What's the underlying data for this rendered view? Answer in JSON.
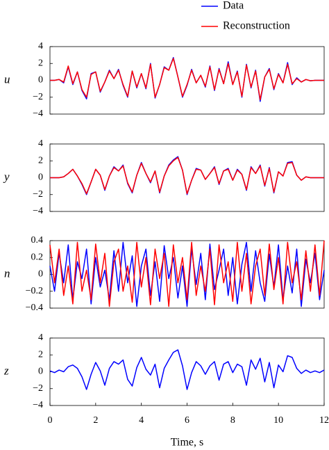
{
  "chart_data": [
    {
      "type": "line",
      "ylabel": "u",
      "legend": "above",
      "xlim": [
        0,
        12
      ],
      "ylim": [
        -4,
        4
      ],
      "yticks": [
        {
          "value": -4,
          "label": "−4"
        },
        {
          "value": -2,
          "label": "−2"
        },
        0,
        2,
        4
      ],
      "x": [
        0,
        0.2,
        0.4,
        0.6,
        0.8,
        1,
        1.2,
        1.4,
        1.6,
        1.8,
        2,
        2.2,
        2.4,
        2.6,
        2.8,
        3,
        3.2,
        3.4,
        3.6,
        3.8,
        4,
        4.2,
        4.4,
        4.6,
        4.8,
        5,
        5.2,
        5.4,
        5.6,
        5.8,
        6,
        6.2,
        6.4,
        6.6,
        6.8,
        7,
        7.2,
        7.4,
        7.6,
        7.8,
        8,
        8.2,
        8.4,
        8.6,
        8.8,
        9,
        9.2,
        9.4,
        9.6,
        9.8,
        10,
        10.2,
        10.4,
        10.6,
        10.8,
        11,
        11.2,
        11.4,
        11.6,
        11.8,
        12
      ],
      "series": [
        {
          "name": "Data",
          "color": "#0000ff",
          "values": [
            0,
            0,
            0.1,
            -0.3,
            1.6,
            -0.5,
            1.0,
            -1.2,
            -2.2,
            0.8,
            1.0,
            -1.4,
            -0.2,
            1.2,
            0.2,
            1.3,
            -0.6,
            -2.0,
            1.1,
            -0.9,
            0.8,
            -1.0,
            2.0,
            -2.1,
            -0.5,
            1.6,
            1.2,
            2.7,
            0.4,
            -2.0,
            -0.6,
            1.3,
            -0.3,
            0.6,
            -0.8,
            1.7,
            -1.2,
            1.4,
            -0.4,
            2.2,
            -0.5,
            1.1,
            -2.0,
            1.9,
            -0.9,
            1.2,
            -2.5,
            0.4,
            1.4,
            -1.1,
            0.8,
            -0.3,
            2.1,
            -0.5,
            0.3,
            -0.2,
            0.1,
            -0.05,
            0,
            0,
            0
          ]
        },
        {
          "name": "Reconstruction",
          "color": "#ff0000",
          "values": [
            0,
            0,
            0.1,
            -0.2,
            1.7,
            -0.4,
            1.0,
            -1.1,
            -2.0,
            0.7,
            1.0,
            -1.3,
            -0.2,
            1.1,
            0.2,
            1.2,
            -0.5,
            -1.9,
            1.1,
            -0.8,
            0.8,
            -0.9,
            1.9,
            -2.0,
            -0.5,
            1.5,
            1.2,
            2.6,
            0.4,
            -1.9,
            -0.5,
            1.2,
            -0.3,
            0.6,
            -0.7,
            1.6,
            -1.1,
            1.3,
            -0.4,
            2.0,
            -0.5,
            1.0,
            -1.9,
            1.8,
            -0.8,
            1.1,
            -2.3,
            0.4,
            1.3,
            -1.0,
            0.7,
            -0.3,
            1.9,
            -0.4,
            0.2,
            -0.2,
            0.1,
            -0.05,
            0,
            0,
            0
          ]
        }
      ]
    },
    {
      "type": "line",
      "ylabel": "y",
      "xlim": [
        0,
        12
      ],
      "ylim": [
        -4,
        4
      ],
      "yticks": [
        {
          "value": -4,
          "label": "−4"
        },
        {
          "value": -2,
          "label": "−2"
        },
        0,
        2,
        4
      ],
      "x": [
        0,
        0.2,
        0.4,
        0.6,
        0.8,
        1,
        1.2,
        1.4,
        1.6,
        1.8,
        2,
        2.2,
        2.4,
        2.6,
        2.8,
        3,
        3.2,
        3.4,
        3.6,
        3.8,
        4,
        4.2,
        4.4,
        4.6,
        4.8,
        5,
        5.2,
        5.4,
        5.6,
        5.8,
        6,
        6.2,
        6.4,
        6.6,
        6.8,
        7,
        7.2,
        7.4,
        7.6,
        7.8,
        8,
        8.2,
        8.4,
        8.6,
        8.8,
        9,
        9.2,
        9.4,
        9.6,
        9.8,
        10,
        10.2,
        10.4,
        10.6,
        10.8,
        11,
        11.2,
        11.4,
        11.6,
        11.8,
        12
      ],
      "series": [
        {
          "name": "Data",
          "color": "#0000ff",
          "values": [
            0,
            0,
            0,
            0.1,
            0.5,
            1.0,
            0.2,
            -0.8,
            -2.0,
            -0.5,
            1.0,
            0.3,
            -1.5,
            0.2,
            1.3,
            0.8,
            1.5,
            -0.7,
            -1.8,
            0.3,
            1.8,
            0.5,
            -0.6,
            0.8,
            -1.8,
            0.2,
            1.5,
            2.1,
            2.5,
            0.9,
            -2.0,
            -0.3,
            1.1,
            0.9,
            -0.2,
            0.5,
            1.3,
            -0.8,
            0.8,
            1.1,
            -0.3,
            1.0,
            0.4,
            -1.5,
            1.3,
            0.5,
            1.5,
            -1.0,
            1.2,
            -1.8,
            0.7,
            0.2,
            1.8,
            1.9,
            0.3,
            -0.3,
            0.1,
            0,
            0,
            0,
            0
          ]
        },
        {
          "name": "Reconstruction",
          "color": "#ff0000",
          "values": [
            0,
            0,
            0,
            0.1,
            0.5,
            1.0,
            0.2,
            -0.7,
            -1.9,
            -0.5,
            1.0,
            0.3,
            -1.4,
            0.2,
            1.2,
            0.8,
            1.4,
            -0.6,
            -1.7,
            0.3,
            1.7,
            0.5,
            -0.5,
            0.8,
            -1.7,
            0.2,
            1.4,
            2.0,
            2.4,
            0.9,
            -1.9,
            -0.3,
            1.0,
            0.9,
            -0.2,
            0.5,
            1.2,
            -0.7,
            0.8,
            1.0,
            -0.3,
            0.9,
            0.4,
            -1.4,
            1.2,
            0.5,
            1.4,
            -0.9,
            1.1,
            -1.7,
            0.7,
            0.2,
            1.7,
            1.8,
            0.3,
            -0.3,
            0.1,
            0,
            0,
            0,
            0
          ]
        }
      ]
    },
    {
      "type": "line",
      "ylabel": "n",
      "xlim": [
        0,
        12
      ],
      "ylim": [
        -0.4,
        0.4
      ],
      "yticks": [
        {
          "value": -0.4,
          "label": "−0.4"
        },
        {
          "value": -0.2,
          "label": "−0.2"
        },
        0,
        0.2,
        0.4
      ],
      "x": [
        0,
        0.2,
        0.4,
        0.6,
        0.8,
        1,
        1.2,
        1.4,
        1.6,
        1.8,
        2,
        2.2,
        2.4,
        2.6,
        2.8,
        3,
        3.2,
        3.4,
        3.6,
        3.8,
        4,
        4.2,
        4.4,
        4.6,
        4.8,
        5,
        5.2,
        5.4,
        5.6,
        5.8,
        6,
        6.2,
        6.4,
        6.6,
        6.8,
        7,
        7.2,
        7.4,
        7.6,
        7.8,
        8,
        8.2,
        8.4,
        8.6,
        8.8,
        9,
        9.2,
        9.4,
        9.6,
        9.8,
        10,
        10.2,
        10.4,
        10.6,
        10.8,
        11,
        11.2,
        11.4,
        11.6,
        11.8,
        12
      ],
      "series": [
        {
          "name": "Data",
          "color": "#0000ff",
          "values": [
            0.1,
            -0.2,
            0.25,
            -0.1,
            0.35,
            -0.3,
            0.15,
            -0.05,
            0.3,
            -0.35,
            0.2,
            -0.15,
            0.05,
            -0.3,
            0.28,
            -0.2,
            0.38,
            -0.1,
            0.22,
            -0.38,
            0.1,
            0.3,
            -0.25,
            0.15,
            -0.32,
            0.34,
            -0.05,
            0.2,
            -0.28,
            0.1,
            -0.38,
            0.3,
            -0.12,
            0.25,
            -0.3,
            0.36,
            -0.18,
            0.05,
            0.3,
            -0.25,
            0.2,
            -0.35,
            0.12,
            0.38,
            -0.2,
            0.28,
            -0.1,
            -0.32,
            0.24,
            -0.15,
            0.35,
            -0.3,
            0.1,
            -0.22,
            0.3,
            -0.38,
            0.18,
            -0.1,
            0.25,
            -0.3,
            0.05
          ]
        },
        {
          "name": "Reconstruction",
          "color": "#ff0000",
          "values": [
            0.35,
            -0.1,
            0.3,
            -0.25,
            0.1,
            -0.35,
            0.38,
            -0.2,
            0.05,
            -0.3,
            0.36,
            -0.1,
            0.25,
            -0.38,
            0.15,
            0.3,
            -0.2,
            0.1,
            -0.33,
            0.38,
            -0.15,
            0.2,
            -0.36,
            0.3,
            -0.05,
            0.25,
            -0.38,
            0.35,
            -0.1,
            0.2,
            -0.3,
            0.38,
            -0.25,
            0.1,
            -0.2,
            0.3,
            -0.36,
            0.35,
            -0.1,
            0.15,
            -0.32,
            0.38,
            -0.2,
            0.25,
            -0.35,
            0.1,
            0.3,
            -0.25,
            0.36,
            -0.18,
            0.2,
            -0.35,
            0.38,
            -0.1,
            0.15,
            -0.3,
            0.28,
            -0.2,
            0.35,
            -0.25,
            0.4
          ]
        }
      ]
    },
    {
      "type": "line",
      "ylabel": "z",
      "xlabel": "Time, s",
      "xlim": [
        0,
        12
      ],
      "ylim": [
        -4,
        4
      ],
      "xticks": [
        0,
        2,
        4,
        6,
        8,
        10,
        12
      ],
      "yticks": [
        {
          "value": -4,
          "label": "−4"
        },
        {
          "value": -2,
          "label": "−2"
        },
        0,
        2,
        4
      ],
      "x": [
        0,
        0.2,
        0.4,
        0.6,
        0.8,
        1,
        1.2,
        1.4,
        1.6,
        1.8,
        2,
        2.2,
        2.4,
        2.6,
        2.8,
        3,
        3.2,
        3.4,
        3.6,
        3.8,
        4,
        4.2,
        4.4,
        4.6,
        4.8,
        5,
        5.2,
        5.4,
        5.6,
        5.8,
        6,
        6.2,
        6.4,
        6.6,
        6.8,
        7,
        7.2,
        7.4,
        7.6,
        7.8,
        8,
        8.2,
        8.4,
        8.6,
        8.8,
        9,
        9.2,
        9.4,
        9.6,
        9.8,
        10,
        10.2,
        10.4,
        10.6,
        10.8,
        11,
        11.2,
        11.4,
        11.6,
        11.8,
        12
      ],
      "series": [
        {
          "name": "Data",
          "color": "#0000ff",
          "values": [
            0.1,
            -0.1,
            0.2,
            0.0,
            0.6,
            0.8,
            0.4,
            -0.6,
            -2.1,
            -0.3,
            1.1,
            0.1,
            -1.6,
            0.4,
            1.2,
            0.9,
            1.4,
            -0.9,
            -1.7,
            0.5,
            1.7,
            0.3,
            -0.4,
            0.9,
            -1.9,
            0.4,
            1.4,
            2.3,
            2.6,
            0.7,
            -2.1,
            -0.1,
            1.2,
            0.7,
            -0.3,
            0.7,
            1.2,
            -1.0,
            0.9,
            1.2,
            -0.1,
            0.9,
            0.6,
            -1.6,
            1.4,
            0.3,
            1.6,
            -1.2,
            1.1,
            -1.9,
            0.8,
            0.0,
            1.9,
            1.7,
            0.4,
            -0.2,
            0.2,
            -0.1,
            0.1,
            -0.1,
            0.2
          ]
        }
      ]
    }
  ]
}
